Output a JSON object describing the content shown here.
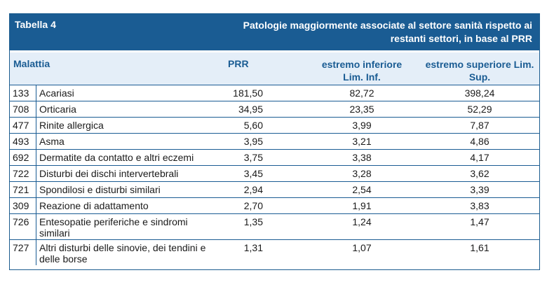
{
  "table": {
    "label": "Tabella 4",
    "title": "Patologie maggiormente associate al settore sanità rispetto ai restanti settori, in base al PRR",
    "headers": {
      "malattia": "Malattia",
      "prr": "PRR",
      "inf": "estremo inferiore Lim. Inf.",
      "sup": "estremo superiore Lim. Sup."
    },
    "rows": [
      {
        "code": "133",
        "name": "Acariasi",
        "prr": "181,50",
        "inf": "82,72",
        "sup": "398,24"
      },
      {
        "code": "708",
        "name": "Orticaria",
        "prr": "34,95",
        "inf": "23,35",
        "sup": "52,29"
      },
      {
        "code": "477",
        "name": "Rinite allergica",
        "prr": "5,60",
        "inf": "3,99",
        "sup": "7,87"
      },
      {
        "code": "493",
        "name": "Asma",
        "prr": "3,95",
        "inf": "3,21",
        "sup": "4,86"
      },
      {
        "code": "692",
        "name": "Dermatite da contatto e altri eczemi",
        "prr": "3,75",
        "inf": "3,38",
        "sup": "4,17"
      },
      {
        "code": "722",
        "name": "Disturbi dei dischi intervertebrali",
        "prr": "3,45",
        "inf": "3,28",
        "sup": "3,62"
      },
      {
        "code": "721",
        "name": "Spondilosi e disturbi similari",
        "prr": "2,94",
        "inf": "2,54",
        "sup": "3,39"
      },
      {
        "code": "309",
        "name": "Reazione di adattamento",
        "prr": "2,70",
        "inf": "1,91",
        "sup": "3,83"
      },
      {
        "code": "726",
        "name": "Entesopatie periferiche e sindromi similari",
        "prr": "1,35",
        "inf": "1,24",
        "sup": "1,47"
      },
      {
        "code": "727",
        "name": "Altri disturbi delle sinovie, dei tendini e delle borse",
        "prr": "1,31",
        "inf": "1,07",
        "sup": "1,61"
      }
    ]
  },
  "colors": {
    "accent": "#1a5c93",
    "header_bg": "#e4eef8"
  }
}
